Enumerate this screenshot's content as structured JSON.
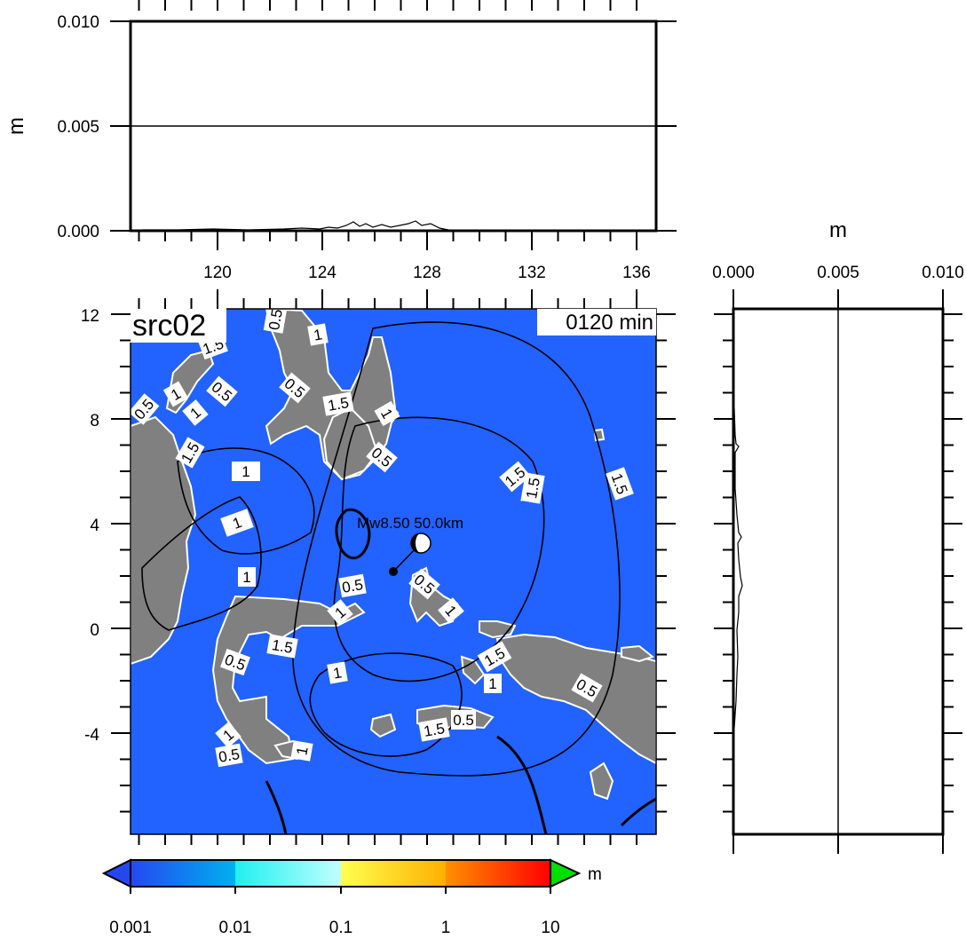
{
  "map": {
    "title": "src02",
    "time_label": "0120 min",
    "quake_label": "Mw8.50 50.0km",
    "lat_ticks": [
      "12",
      "8",
      "4",
      "0",
      "-4"
    ],
    "lon_ticks": [
      "120",
      "124",
      "128",
      "132",
      "136"
    ],
    "contour_labels": [
      "0.5",
      "1",
      "1.5",
      "0.5",
      "1",
      "1.5",
      "1",
      "0.5",
      "1",
      "1.5",
      "1",
      "0.5",
      "1.5",
      "1",
      "1.5",
      "1",
      "1.5",
      "1.5",
      "1.5",
      "0.5",
      "1",
      "0.5",
      "1.5",
      "1",
      "1",
      "0.5",
      "1.5",
      "1",
      "1.5",
      "0.5",
      "0.5",
      "1.5",
      "0.5",
      "1",
      "0.5",
      "1"
    ],
    "colors": {
      "ocean": "#2060ff",
      "land": "#808080",
      "coast": "#ffffff",
      "contour": "#000000"
    }
  },
  "top_profile": {
    "unit": "m",
    "y_ticks": [
      "0.010",
      "0.005",
      "0.000"
    ],
    "x_ticks": [
      "120",
      "124",
      "128",
      "132",
      "136"
    ]
  },
  "right_profile": {
    "unit": "m",
    "x_ticks": [
      "0.000",
      "0.005",
      "0.010"
    ]
  },
  "colorbar": {
    "unit": "m",
    "ticks": [
      "0.001",
      "0.01",
      "0.1",
      "1",
      "10"
    ],
    "colors": [
      "#2a55f0",
      "#00aaf0",
      "#40ffff",
      "#ffff50",
      "#ffa000",
      "#ff0000",
      "#00e000"
    ]
  }
}
